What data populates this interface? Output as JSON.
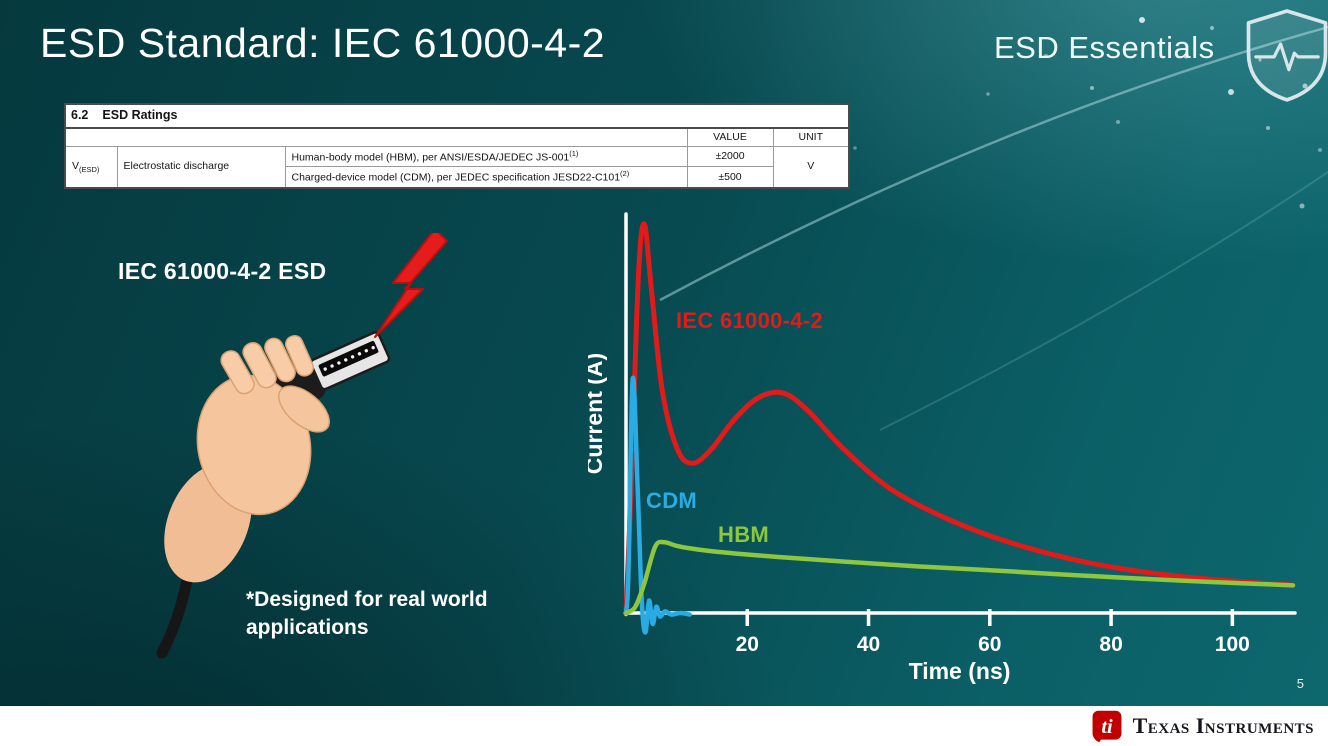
{
  "slide": {
    "title": "ESD Standard: IEC 61000-4-2",
    "series_brand": "ESD Essentials",
    "page_number": "5"
  },
  "colors": {
    "background_teal": "#0b5f66",
    "iec_red": "#e11a1a",
    "cdm_cyan": "#2aabe2",
    "hbm_green": "#8dc63f",
    "ti_red": "#c10000"
  },
  "ratings_table": {
    "section_number": "6.2",
    "section_title": "ESD Ratings",
    "value_header": "VALUE",
    "unit_header": "UNIT",
    "symbol_base": "V",
    "symbol_sub": "(ESD)",
    "parameter": "Electrostatic discharge",
    "rows": [
      {
        "description": "Human-body model (HBM), per ANSI/ESDA/JEDEC JS-001",
        "footnote": "(1)",
        "value": "±2000"
      },
      {
        "description": "Charged-device model (CDM), per JEDEC specification JESD22-C101",
        "footnote": "(2)",
        "value": "±500"
      }
    ],
    "unit": "V"
  },
  "illustration": {
    "label": "IEC 61000-4-2 ESD",
    "note": "*Designed for real world applications"
  },
  "chart_data": {
    "type": "line",
    "title": "",
    "xlabel": "Time (ns)",
    "ylabel": "Current (A)",
    "xlim": [
      0,
      110
    ],
    "ylim": [
      -0.08,
      1.05
    ],
    "x_ticks": [
      20,
      40,
      60,
      80,
      100
    ],
    "grid": false,
    "legend_position": "inline-labels",
    "series": [
      {
        "name": "IEC 61000-4-2",
        "color": "#e11a1a",
        "width": 5,
        "points": [
          [
            0,
            0
          ],
          [
            0.8,
            0.3
          ],
          [
            2,
            0.85
          ],
          [
            3,
            1.0
          ],
          [
            4.2,
            0.83
          ],
          [
            6,
            0.57
          ],
          [
            8.5,
            0.42
          ],
          [
            11,
            0.385
          ],
          [
            14,
            0.42
          ],
          [
            18,
            0.5
          ],
          [
            22,
            0.555
          ],
          [
            26,
            0.565
          ],
          [
            30,
            0.52
          ],
          [
            36,
            0.42
          ],
          [
            44,
            0.315
          ],
          [
            54,
            0.235
          ],
          [
            64,
            0.178
          ],
          [
            76,
            0.13
          ],
          [
            88,
            0.1
          ],
          [
            100,
            0.082
          ],
          [
            110,
            0.072
          ]
        ]
      },
      {
        "name": "CDM",
        "color": "#2aabe2",
        "width": 4.5,
        "points": [
          [
            0,
            0
          ],
          [
            0.4,
            0.1
          ],
          [
            1.1,
            0.6
          ],
          [
            1.9,
            0.33
          ],
          [
            2.6,
            0.03
          ],
          [
            3.2,
            -0.05
          ],
          [
            3.8,
            0.032
          ],
          [
            4.4,
            -0.028
          ],
          [
            5,
            0.016
          ],
          [
            5.6,
            -0.009
          ],
          [
            6.4,
            0.004
          ],
          [
            7.5,
            -0.004
          ],
          [
            9,
            0
          ],
          [
            10.5,
            -0.004
          ]
        ]
      },
      {
        "name": "HBM",
        "color": "#8dc63f",
        "width": 4.5,
        "points": [
          [
            0,
            0
          ],
          [
            1.5,
            0.015
          ],
          [
            3,
            0.075
          ],
          [
            4.8,
            0.17
          ],
          [
            6.3,
            0.182
          ],
          [
            8.5,
            0.172
          ],
          [
            12,
            0.163
          ],
          [
            18,
            0.153
          ],
          [
            26,
            0.143
          ],
          [
            36,
            0.132
          ],
          [
            48,
            0.12
          ],
          [
            60,
            0.11
          ],
          [
            72,
            0.099
          ],
          [
            84,
            0.089
          ],
          [
            96,
            0.08
          ],
          [
            104,
            0.075
          ],
          [
            110,
            0.071
          ]
        ]
      }
    ]
  },
  "footer": {
    "logo_text": "Texas Instruments"
  }
}
